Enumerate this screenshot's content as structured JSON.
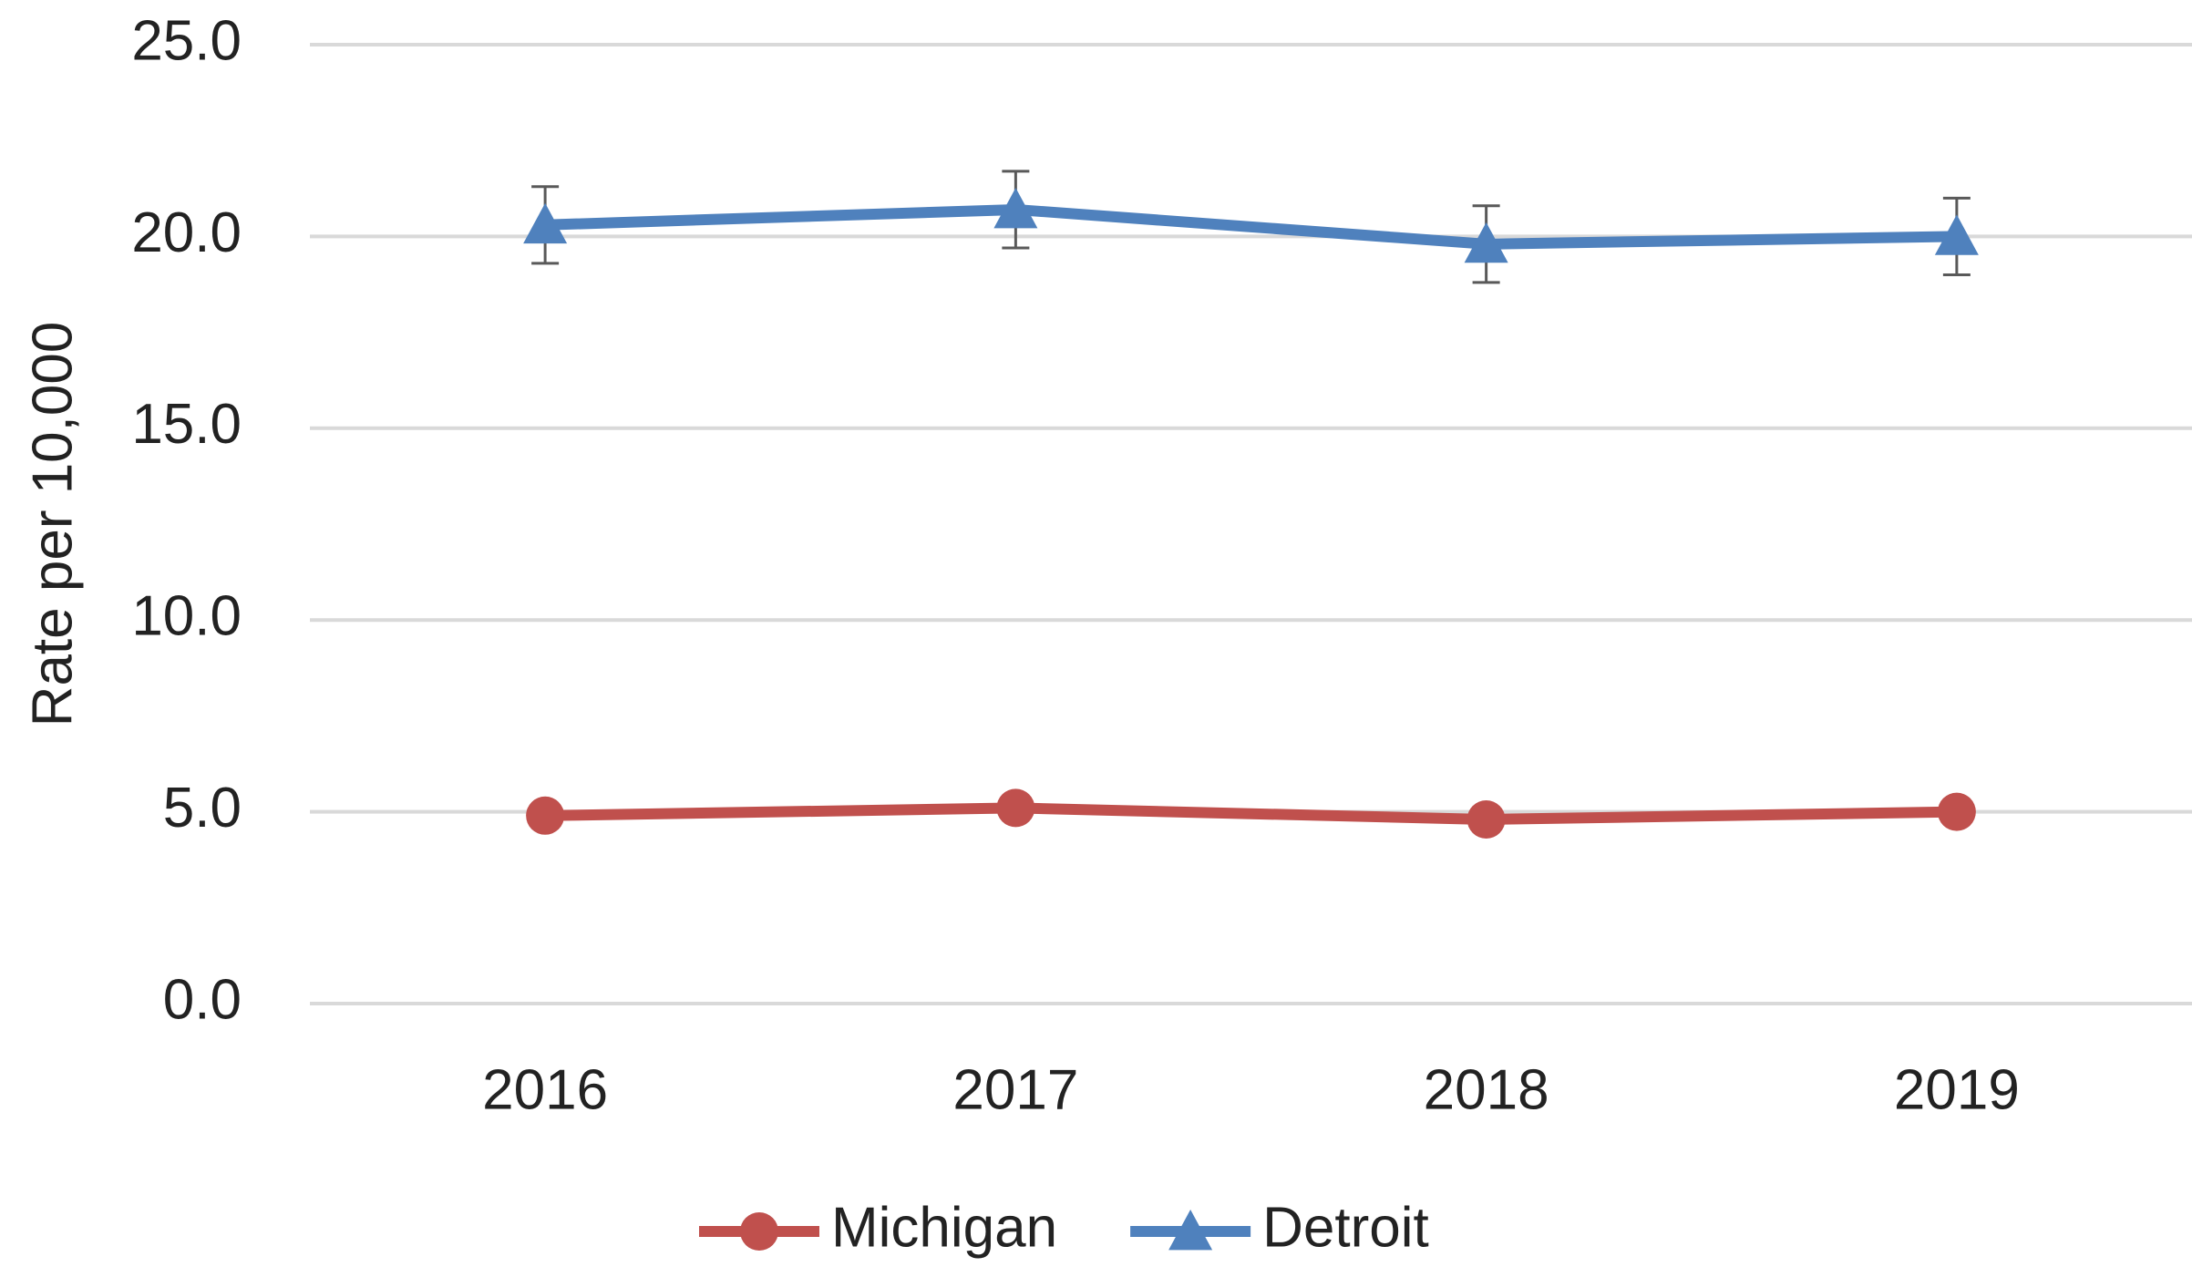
{
  "chart_data": {
    "type": "line",
    "ylabel": "Rate per 10,000",
    "categories": [
      "2016",
      "2017",
      "2018",
      "2019"
    ],
    "series": [
      {
        "name": "Michigan",
        "color": "#c0504d",
        "marker": "circle",
        "values": [
          4.9,
          5.1,
          4.8,
          5.0
        ]
      },
      {
        "name": "Detroit",
        "color": "#4f81bd",
        "marker": "triangle",
        "values": [
          20.3,
          20.7,
          19.8,
          20.0
        ],
        "errors": [
          1.0,
          1.0,
          1.0,
          1.0
        ]
      }
    ],
    "ylim": [
      0,
      25
    ],
    "yticks": [
      {
        "value": 0,
        "label": "0.0"
      },
      {
        "value": 5,
        "label": "5.0"
      },
      {
        "value": 10,
        "label": "10.0"
      },
      {
        "value": 15,
        "label": "15.0"
      },
      {
        "value": 20,
        "label": "20.0"
      },
      {
        "value": 25,
        "label": "25.0"
      }
    ],
    "grid": true,
    "legend": "bottom"
  }
}
